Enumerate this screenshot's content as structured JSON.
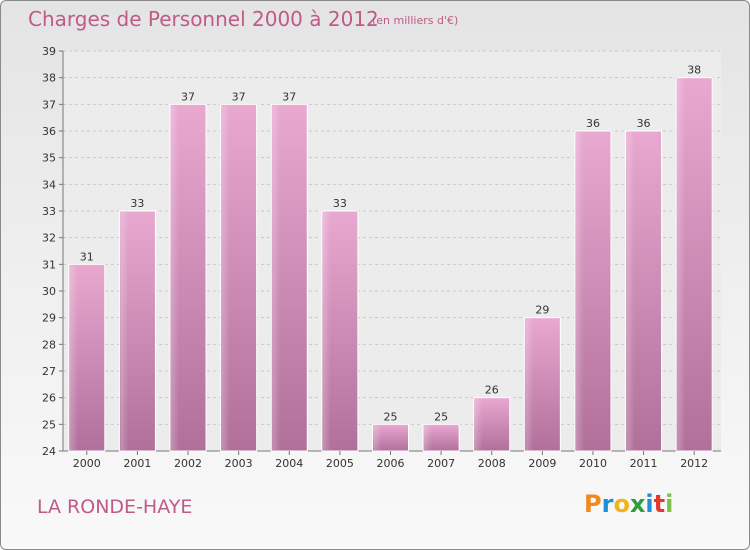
{
  "chart_data": {
    "type": "bar",
    "title": "Charges de Personnel 2000 à 2012",
    "subtitle": "(en milliers d'€)",
    "categories": [
      "2000",
      "2001",
      "2002",
      "2003",
      "2004",
      "2005",
      "2006",
      "2007",
      "2008",
      "2009",
      "2010",
      "2011",
      "2012"
    ],
    "values": [
      31,
      33,
      37,
      37,
      37,
      33,
      25,
      25,
      26,
      29,
      36,
      36,
      38
    ],
    "ylim": [
      24,
      39
    ],
    "yticks": [
      24,
      25,
      26,
      27,
      28,
      29,
      30,
      31,
      32,
      33,
      34,
      35,
      36,
      37,
      38,
      39
    ],
    "grid": true,
    "bar_color_top": "#e8a8d0",
    "bar_color_bottom": "#b0709a"
  },
  "footer": {
    "town": "LA RONDE-HAYE"
  },
  "logo": {
    "letters": [
      {
        "char": "P",
        "color": "#f08a1c"
      },
      {
        "char": "r",
        "color": "#1e8fd6"
      },
      {
        "char": "o",
        "color": "#f2b31a"
      },
      {
        "char": "x",
        "color": "#2e9e3a"
      },
      {
        "char": "i",
        "color": "#1e8fd6"
      },
      {
        "char": "t",
        "color": "#e2372b"
      },
      {
        "char": "i",
        "color": "#7dc242"
      }
    ]
  }
}
